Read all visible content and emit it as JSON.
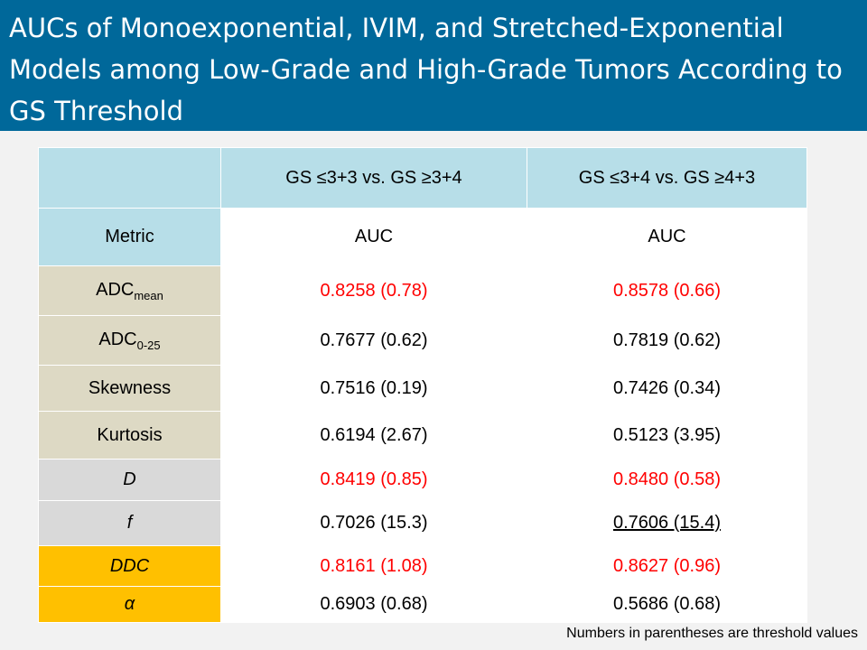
{
  "title": "AUCs of Monoexponential, IVIM, and Stretched-Exponential Models among Low-Grade and High-Grade Tumors According to GS Threshold",
  "table": {
    "header": {
      "corner": "",
      "col1": "GS ≤3+3 vs. GS ≥3+4",
      "col2": "GS ≤3+4 vs. GS ≥4+3"
    },
    "subheader": {
      "label": "Metric",
      "col1": "AUC",
      "col2": "AUC"
    },
    "rows": [
      {
        "metric": "ADC",
        "metric_sub": "mean",
        "col1": "0.8258 (0.78)",
        "col2": "0.8578 (0.66)"
      },
      {
        "metric": "ADC",
        "metric_sub": "0-25",
        "col1": "0.7677 (0.62)",
        "col2": "0.7819 (0.62)"
      },
      {
        "metric": "Skewness",
        "col1": "0.7516 (0.19)",
        "col2": "0.7426 (0.34)"
      },
      {
        "metric": "Kurtosis",
        "col1": "0.6194 (2.67)",
        "col2": "0.5123 (3.95)"
      },
      {
        "metric": "D",
        "col1": "0.8419 (0.85)",
        "col2": "0.8480 (0.58)"
      },
      {
        "metric": "f",
        "col1": "0.7026 (15.3)",
        "col2": "0.7606 (15.4)"
      },
      {
        "metric": "DDC",
        "col1": "0.8161 (1.08)",
        "col2": "0.8627 (0.96)"
      },
      {
        "metric": "α",
        "col1": "0.6903 (0.68)",
        "col2": "0.5686 (0.68)"
      }
    ]
  },
  "footnote": "Numbers in parentheses are threshold values",
  "colors": {
    "title_bg": "#00689a",
    "header_bg": "#b7dee8",
    "mono_bg": "#ddd9c4",
    "ivim_bg": "#d9d9d9",
    "stretched_bg": "#ffc000",
    "highlight": "#ff0000"
  }
}
